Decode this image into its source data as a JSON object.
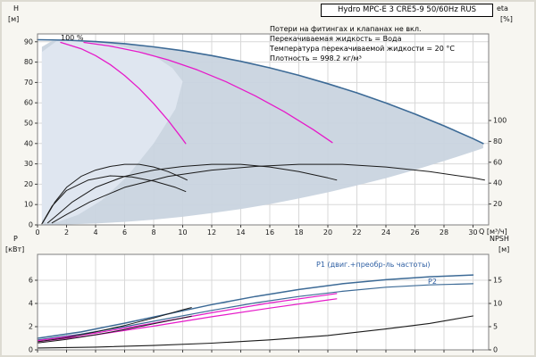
{
  "window": {
    "title": "Hydro MPC-E 3 CRE5-9 50/60Hz RUS"
  },
  "notes": [
    "Потери на фитингах и клапанах не вкл.",
    "Перекачиваемая жидкость = Вода",
    "Температура перекачиваемой жидкости = 20 °C",
    "Плотность = 998.2 кг/м³"
  ],
  "labels": {
    "h_axis": "H",
    "h_unit": "[м]",
    "eta_axis": "eta",
    "eta_unit": "[%]",
    "q_axis": "Q [м³/ч]",
    "p_axis": "P",
    "p_unit": "[кВт]",
    "npsh_axis": "NPSH",
    "npsh_unit": "[м]",
    "speed": "100 %",
    "p1": "P1 (двиг.+преобр-ль частоты)",
    "p2": "P2"
  },
  "colors": {
    "curve_blue": "#3c6a96",
    "magenta": "#e619c9",
    "black": "#1a1a1a",
    "envelope": "#c9d4df",
    "envelope_light": "#dfe7f0",
    "label_blue": "#2e5fa3",
    "grid": "#d8d8d8"
  },
  "chart_data": [
    {
      "id": "head",
      "type": "line",
      "title": "Hydro MPC-E 3 CRE5-9 50/60Hz RUS",
      "xlabel": "Q [м³/ч]",
      "ylabel_left": "H [м]",
      "ylabel_right": "eta [%]",
      "xlim": [
        0,
        31.1
      ],
      "ylim_left": [
        0,
        94
      ],
      "ylim_right": [
        0,
        100
      ],
      "x_ticks": [
        0,
        2,
        4,
        6,
        8,
        10,
        12,
        14,
        16,
        18,
        20,
        22,
        24,
        26,
        28,
        30
      ],
      "show_x_labels": true,
      "left_scale": "H",
      "right_scale": "eta",
      "y_ticks_left": [
        0,
        10,
        20,
        30,
        40,
        50,
        60,
        70,
        80,
        90
      ],
      "y_ticks_right": [
        20,
        40,
        60,
        80,
        100
      ],
      "areas": [
        {
          "name": "qh-operating-envelope",
          "yscale": "H",
          "color": "#c9d4df",
          "points": [
            [
              0.3,
              87.5
            ],
            [
              1,
              90.4
            ],
            [
              2,
              90.8
            ],
            [
              4,
              90.1
            ],
            [
              6,
              89.1
            ],
            [
              8,
              87.5
            ],
            [
              10,
              85.6
            ],
            [
              12,
              83.2
            ],
            [
              14,
              80.4
            ],
            [
              16,
              77.2
            ],
            [
              18,
              73.5
            ],
            [
              20,
              69.4
            ],
            [
              22,
              64.9
            ],
            [
              24,
              59.9
            ],
            [
              26,
              54.5
            ],
            [
              28,
              48.7
            ],
            [
              30,
              42.4
            ],
            [
              30.7,
              40
            ],
            [
              30.7,
              37.7
            ],
            [
              30,
              36
            ],
            [
              28,
              31.4
            ],
            [
              26,
              27
            ],
            [
              24,
              23
            ],
            [
              22,
              19.4
            ],
            [
              20,
              16
            ],
            [
              18,
              13
            ],
            [
              16,
              10.2
            ],
            [
              14,
              7.8
            ],
            [
              12,
              5.8
            ],
            [
              10,
              4
            ],
            [
              8,
              2.6
            ],
            [
              6,
              1.5
            ],
            [
              4,
              0.7
            ],
            [
              2,
              0.2
            ],
            [
              0.8,
              0.1
            ],
            [
              0.3,
              0.3
            ]
          ]
        },
        {
          "name": "qh-left-light-band",
          "yscale": "H",
          "color": "#dfe7f0",
          "points": [
            [
              0.3,
              3
            ],
            [
              0.3,
              85
            ],
            [
              1.3,
              90.2
            ],
            [
              3,
              90.3
            ],
            [
              5,
              88.8
            ],
            [
              6.8,
              86.2
            ],
            [
              8.2,
              82.3
            ],
            [
              9.3,
              77
            ],
            [
              10,
              70.5
            ],
            [
              9.5,
              57
            ],
            [
              8,
              40
            ],
            [
              6.2,
              24
            ],
            [
              4.4,
              12
            ],
            [
              2.8,
              5
            ],
            [
              1.4,
              1.5
            ],
            [
              0.6,
              1
            ]
          ]
        }
      ],
      "series": [
        {
          "name": "qh-curve-max-3pumps",
          "color": "#3c6a96",
          "width": 1.6,
          "yscale": "H",
          "points": [
            [
              0,
              91
            ],
            [
              2,
              90.8
            ],
            [
              4,
              90.1
            ],
            [
              6,
              89.1
            ],
            [
              8,
              87.5
            ],
            [
              10,
              85.6
            ],
            [
              12,
              83.2
            ],
            [
              14,
              80.4
            ],
            [
              16,
              77.2
            ],
            [
              18,
              73.5
            ],
            [
              20,
              69.4
            ],
            [
              22,
              64.9
            ],
            [
              24,
              59.9
            ],
            [
              26,
              54.5
            ],
            [
              28,
              48.7
            ],
            [
              30,
              42.4
            ],
            [
              30.7,
              40
            ]
          ]
        },
        {
          "name": "qh-curve-1pump-100pct",
          "color": "#e619c9",
          "width": 1.3,
          "yscale": "H",
          "points": [
            [
              1.6,
              89.7
            ],
            [
              3,
              86.6
            ],
            [
              4,
              83.2
            ],
            [
              5,
              78.8
            ],
            [
              6,
              73.4
            ],
            [
              7,
              67
            ],
            [
              8,
              59.6
            ],
            [
              9,
              51.3
            ],
            [
              10,
              42
            ],
            [
              10.2,
              40
            ]
          ]
        },
        {
          "name": "qh-curve-2pumps-100pct",
          "color": "#e619c9",
          "width": 1.3,
          "yscale": "H",
          "points": [
            [
              3.2,
              89.7
            ],
            [
              5,
              87.9
            ],
            [
              7,
              85
            ],
            [
              9,
              81.1
            ],
            [
              11,
              76.2
            ],
            [
              13,
              70.3
            ],
            [
              15,
              63.4
            ],
            [
              17,
              55.6
            ],
            [
              19,
              46.8
            ],
            [
              20.3,
              40.5
            ]
          ]
        },
        {
          "name": "eta-curve-1pump",
          "color": "#1a1a1a",
          "width": 1,
          "yscale": "eta",
          "points": [
            [
              0.35,
              2
            ],
            [
              0.7,
              10
            ],
            [
              1.2,
              22
            ],
            [
              2,
              36
            ],
            [
              3,
              46.5
            ],
            [
              4,
              52.5
            ],
            [
              5,
              56
            ],
            [
              6,
              58
            ],
            [
              7,
              58
            ],
            [
              8,
              55.5
            ],
            [
              9,
              51
            ],
            [
              10,
              45
            ],
            [
              10.3,
              43
            ]
          ]
        },
        {
          "name": "eta-curve-2pumps",
          "color": "#1a1a1a",
          "width": 1,
          "yscale": "eta",
          "points": [
            [
              0.7,
              2
            ],
            [
              1.4,
              10
            ],
            [
              2.4,
              22
            ],
            [
              4,
              36
            ],
            [
              6,
              46.5
            ],
            [
              8,
              52.5
            ],
            [
              10,
              56
            ],
            [
              12,
              58
            ],
            [
              14,
              58
            ],
            [
              16,
              55.5
            ],
            [
              18,
              51
            ],
            [
              20,
              45
            ],
            [
              20.6,
              43
            ]
          ]
        },
        {
          "name": "eta-curve-3pumps",
          "color": "#1a1a1a",
          "width": 1,
          "yscale": "eta",
          "points": [
            [
              1,
              2
            ],
            [
              2,
              10
            ],
            [
              3.6,
              22
            ],
            [
              6,
              36
            ],
            [
              9,
              46.5
            ],
            [
              12,
              52.5
            ],
            [
              15,
              56
            ],
            [
              18,
              58
            ],
            [
              21,
              58
            ],
            [
              24,
              55.5
            ],
            [
              27,
              51
            ],
            [
              30,
              45
            ],
            [
              30.8,
              43
            ]
          ]
        },
        {
          "name": "eta-curve-low-speed",
          "color": "#1a1a1a",
          "width": 1,
          "yscale": "eta",
          "points": [
            [
              0.3,
              1
            ],
            [
              1,
              18
            ],
            [
              2,
              33
            ],
            [
              3.5,
              43
            ],
            [
              5,
              47
            ],
            [
              6.5,
              46
            ],
            [
              8,
              42
            ],
            [
              9.5,
              36
            ],
            [
              10.2,
              32
            ]
          ]
        }
      ]
    },
    {
      "id": "power",
      "type": "line",
      "xlabel": "Q [м³/ч]",
      "ylabel_left": "P [кВт]",
      "ylabel_right": "NPSH [м]",
      "xlim": [
        0,
        31.1
      ],
      "ylim_left": [
        0,
        8.2
      ],
      "ylim_right": [
        0,
        20.6
      ],
      "x_ticks": [
        0,
        2,
        4,
        6,
        8,
        10,
        12,
        14,
        16,
        18,
        20,
        22,
        24,
        26,
        28,
        30
      ],
      "show_x_labels": false,
      "left_scale": "P",
      "right_scale": "NPSH",
      "y_ticks_left": [
        0,
        2,
        4,
        6
      ],
      "y_ticks_right": [
        0,
        5,
        10,
        15
      ],
      "areas": [],
      "series": [
        {
          "name": "p1-curve-total",
          "color": "#3c6a96",
          "width": 1.5,
          "yscale": "P",
          "points": [
            [
              0,
              1.0
            ],
            [
              3,
              1.55
            ],
            [
              6,
              2.3
            ],
            [
              9,
              3.1
            ],
            [
              12,
              3.9
            ],
            [
              15,
              4.6
            ],
            [
              18,
              5.2
            ],
            [
              21,
              5.7
            ],
            [
              24,
              6.05
            ],
            [
              27,
              6.3
            ],
            [
              30,
              6.45
            ]
          ]
        },
        {
          "name": "p2-curve-shaft",
          "color": "#3c6a96",
          "width": 1.2,
          "yscale": "P",
          "points": [
            [
              0,
              0.85
            ],
            [
              3,
              1.35
            ],
            [
              6,
              2.0
            ],
            [
              9,
              2.7
            ],
            [
              12,
              3.4
            ],
            [
              15,
              4.05
            ],
            [
              18,
              4.6
            ],
            [
              21,
              5.05
            ],
            [
              24,
              5.4
            ],
            [
              27,
              5.6
            ],
            [
              30,
              5.7
            ]
          ]
        },
        {
          "name": "p-curve-2pumps-a",
          "color": "#e619c9",
          "width": 1.2,
          "yscale": "P",
          "points": [
            [
              0,
              0.8
            ],
            [
              4,
              1.45
            ],
            [
              8,
              2.3
            ],
            [
              12,
              3.2
            ],
            [
              16,
              4.05
            ],
            [
              20,
              4.75
            ],
            [
              20.6,
              4.85
            ]
          ]
        },
        {
          "name": "p-curve-2pumps-b",
          "color": "#e619c9",
          "width": 1.2,
          "yscale": "P",
          "points": [
            [
              0,
              0.7
            ],
            [
              4,
              1.3
            ],
            [
              8,
              2.05
            ],
            [
              12,
              2.85
            ],
            [
              16,
              3.6
            ],
            [
              20,
              4.3
            ],
            [
              20.6,
              4.4
            ]
          ]
        },
        {
          "name": "p-curve-1pump-a",
          "color": "#1a1a1a",
          "width": 1,
          "yscale": "P",
          "points": [
            [
              0,
              0.7
            ],
            [
              2,
              1.05
            ],
            [
              4,
              1.55
            ],
            [
              6,
              2.1
            ],
            [
              8,
              2.75
            ],
            [
              10,
              3.45
            ],
            [
              10.6,
              3.65
            ]
          ]
        },
        {
          "name": "p-curve-1pump-b",
          "color": "#1a1a1a",
          "width": 1,
          "yscale": "P",
          "points": [
            [
              0,
              0.6
            ],
            [
              2,
              0.9
            ],
            [
              4,
              1.3
            ],
            [
              6,
              1.75
            ],
            [
              8,
              2.25
            ],
            [
              10,
              2.75
            ],
            [
              10.6,
              2.9
            ]
          ]
        },
        {
          "name": "npsh-curve",
          "color": "#1a1a1a",
          "width": 1.1,
          "yscale": "NPSH",
          "points": [
            [
              0,
              0.4
            ],
            [
              4,
              0.6
            ],
            [
              8,
              0.95
            ],
            [
              12,
              1.45
            ],
            [
              16,
              2.15
            ],
            [
              20,
              3.1
            ],
            [
              24,
              4.5
            ],
            [
              27,
              5.7
            ],
            [
              30,
              7.3
            ]
          ]
        }
      ]
    }
  ]
}
